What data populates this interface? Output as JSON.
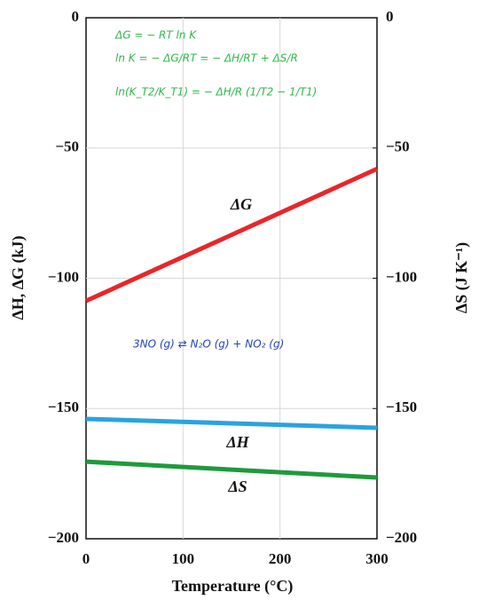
{
  "chart_data": {
    "type": "line",
    "x_label": "Temperature (°C)",
    "y_label": "ΔH, ΔG (kJ)",
    "y2_label": "ΔS (J K⁻¹)",
    "x": [
      0,
      300
    ],
    "xlim": [
      0,
      300
    ],
    "xticks": [
      0,
      100,
      200,
      300
    ],
    "ylim": [
      -200,
      0
    ],
    "yticks": [
      {
        "value": -200,
        "label": "−200"
      },
      {
        "value": -150,
        "label": "−150"
      },
      {
        "value": -100,
        "label": "−100"
      },
      {
        "value": -50,
        "label": "−50"
      },
      0
    ],
    "y2lim": [
      -200,
      0
    ],
    "y2ticks": [
      {
        "value": -200,
        "label": "−200"
      },
      {
        "value": -150,
        "label": "−150"
      },
      {
        "value": -100,
        "label": "−100"
      },
      {
        "value": -50,
        "label": "−50"
      },
      0
    ],
    "grid": true,
    "series": [
      {
        "name": "ΔG",
        "color": "#e8262a",
        "values": [
          -108.7,
          -58
        ]
      },
      {
        "name": "ΔH",
        "color": "#2aa3e0",
        "values": [
          -154,
          -157.4
        ]
      },
      {
        "name": "ΔS",
        "color": "#1e9a3c",
        "values": [
          -170.4,
          -176.5
        ],
        "axis": "y2"
      }
    ],
    "annotations": [
      {
        "text": "ΔG = − RT ln K",
        "color": "#2fb84a"
      },
      {
        "text": "ln K = − ΔG/RT = − ΔH/RT + ΔS/R",
        "color": "#2fb84a"
      },
      {
        "text": "ln(K_T2/K_T1) = − ΔH/R (1/T2 − 1/T1)",
        "color": "#2fb84a"
      },
      {
        "text": "3NO (g) ⇄ N₂O (g) + NO₂ (g)",
        "color": "#2244b8"
      }
    ]
  }
}
